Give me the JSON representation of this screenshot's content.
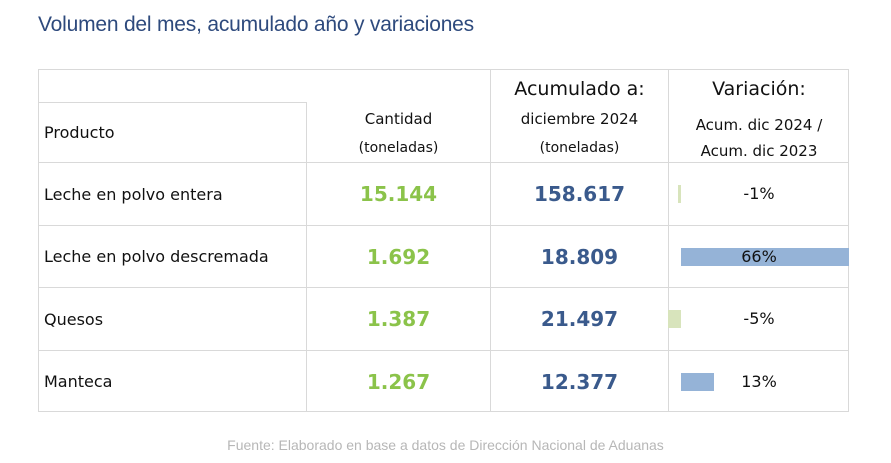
{
  "title": "Volumen del mes, acumulado año y variaciones",
  "header": {
    "producto": "Producto",
    "cantidad": "Cantidad",
    "cantidad_unit": "(toneladas)",
    "acumulado_title": "Acumulado a:",
    "acumulado_period": "diciembre 2024",
    "acumulado_unit": "(toneladas)",
    "variacion_title": "Variación:",
    "variacion_line1": "Acum. dic 2024 /",
    "variacion_line2": "Acum. dic 2023"
  },
  "rows": [
    {
      "producto": "Leche en polvo entera",
      "cantidad": "15.144",
      "acumulado": "158.617",
      "variacion": "-1%",
      "variacion_value": -1
    },
    {
      "producto": "Leche en polvo descremada",
      "cantidad": "1.692",
      "acumulado": "18.809",
      "variacion": "66%",
      "variacion_value": 66
    },
    {
      "producto": "Quesos",
      "cantidad": "1.387",
      "acumulado": "21.497",
      "variacion": "-5%",
      "variacion_value": -5
    },
    {
      "producto": "Manteca",
      "cantidad": "1.267",
      "acumulado": "12.377",
      "variacion": "13%",
      "variacion_value": 13
    }
  ],
  "colors": {
    "title": "#2e4a7d",
    "cantidad": "#8bc34a",
    "acumulado": "#3a5a8c",
    "bar_positive": "#95b3d7",
    "bar_negative": "#d8e4bc"
  },
  "footer": "Fuente: Elaborado en base a datos de Dirección Nacional de Aduanas"
}
